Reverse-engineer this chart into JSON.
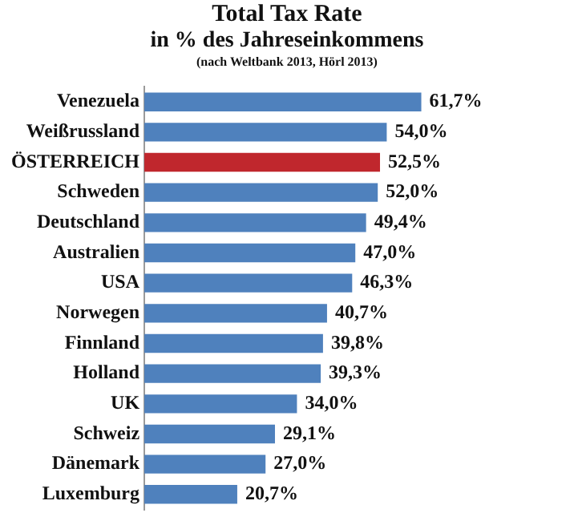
{
  "chart_data": {
    "type": "bar",
    "orientation": "horizontal",
    "title": "Total Tax Rate",
    "subtitle": "in % des Jahreseinkommens",
    "annotations": [
      "(nach Weltbank 2013, Hörl 2013)"
    ],
    "categories": [
      "Venezuela",
      "Weißrussland",
      "ÖSTERREICH",
      "Schweden",
      "Deutschland",
      "Australien",
      "USA",
      "Norwegen",
      "Finnland",
      "Holland",
      "UK",
      "Schweiz",
      "Dänemark",
      "Luxemburg"
    ],
    "values": [
      61.7,
      54.0,
      52.5,
      52.0,
      49.4,
      47.0,
      46.3,
      40.7,
      39.8,
      39.3,
      34.0,
      29.1,
      27.0,
      20.7
    ],
    "value_labels": [
      "61,7%",
      "54,0%",
      "52,5%",
      "52,0%",
      "49,4%",
      "47,0%",
      "46,3%",
      "40,7%",
      "39,8%",
      "39,3%",
      "34,0%",
      "29,1%",
      "27,0%",
      "20,7%"
    ],
    "colors": [
      "#4f81bd",
      "#4f81bd",
      "#c0272d",
      "#4f81bd",
      "#4f81bd",
      "#4f81bd",
      "#4f81bd",
      "#4f81bd",
      "#4f81bd",
      "#4f81bd",
      "#4f81bd",
      "#4f81bd",
      "#4f81bd",
      "#4f81bd"
    ],
    "tick_labels": "y",
    "grid": false,
    "legend": false
  }
}
